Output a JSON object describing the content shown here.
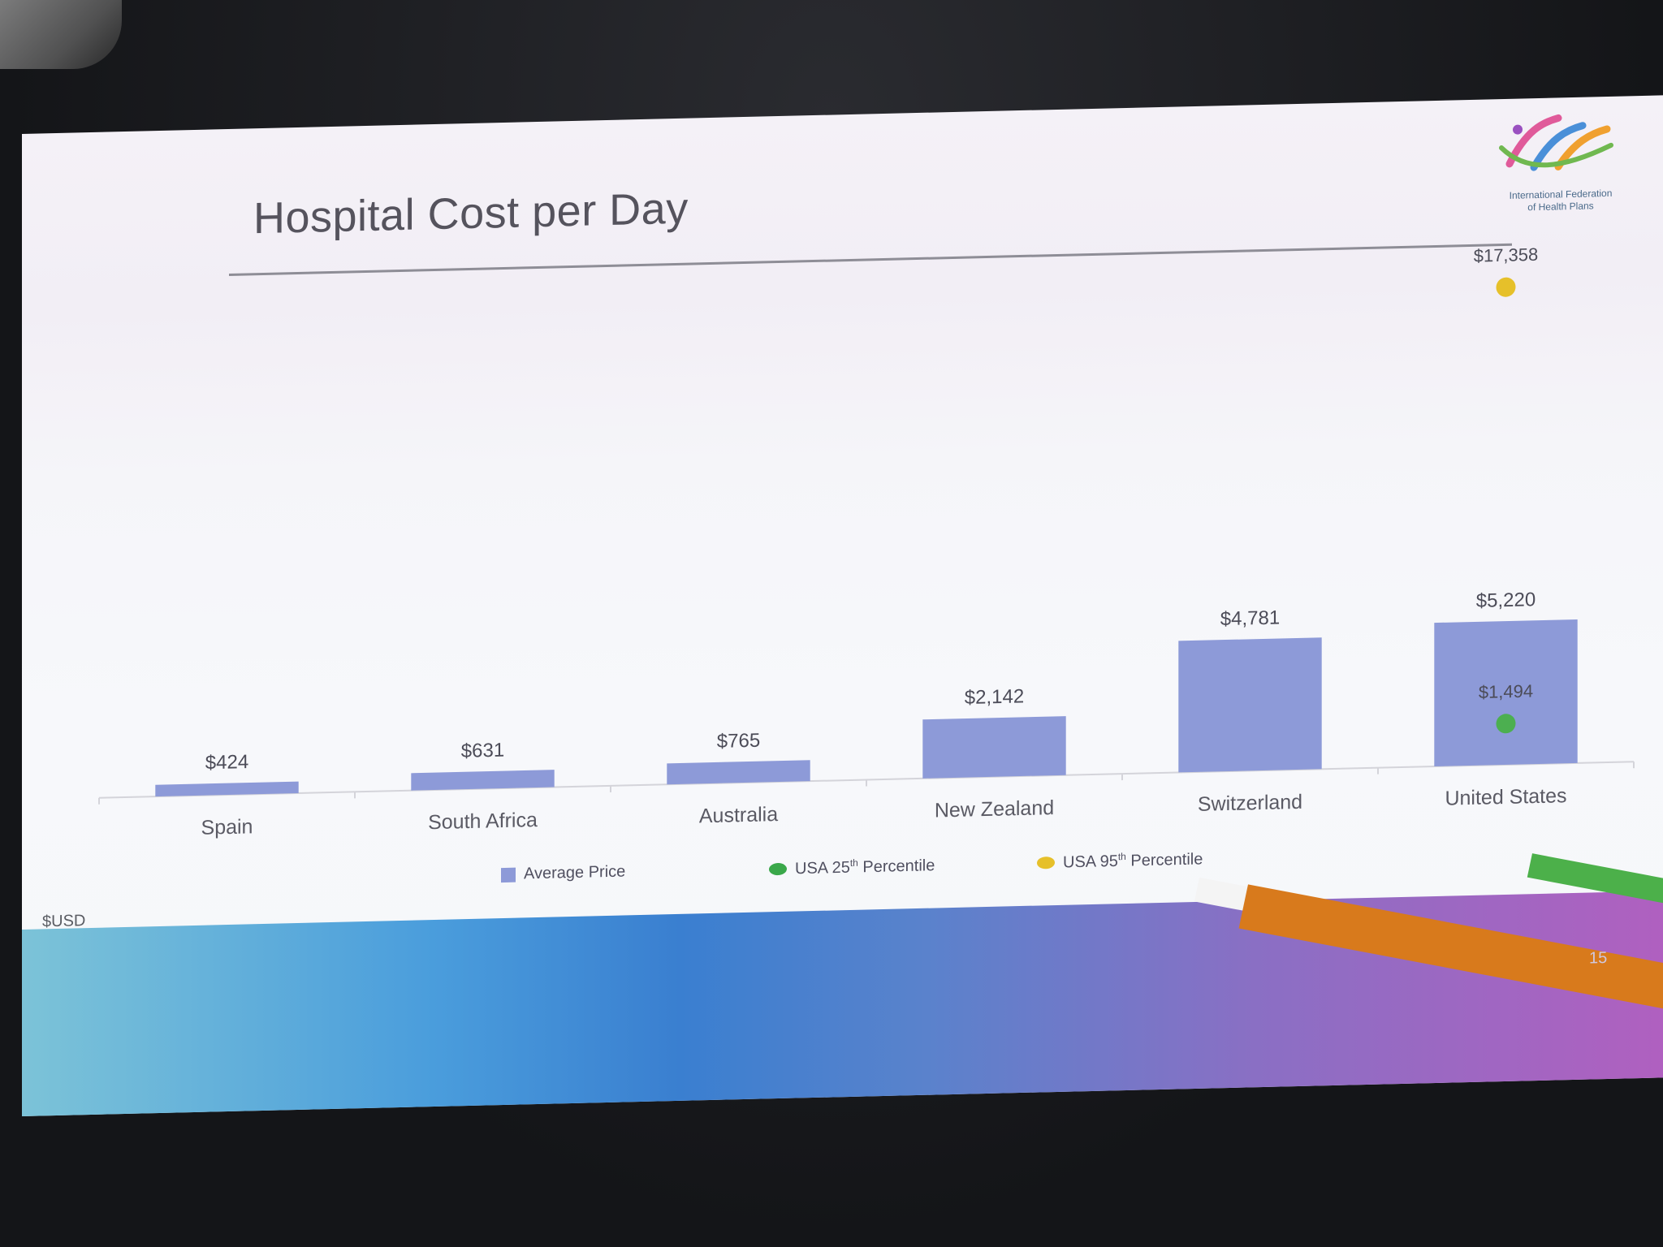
{
  "slide": {
    "title": "Hospital Cost per Day",
    "logo_text_line1": "International Federation",
    "logo_text_line2": "of Health Plans",
    "unit_label": "$USD",
    "page_number": "15"
  },
  "legend": [
    {
      "label": "Average Price",
      "color": "#8d9ad8",
      "shape": "square"
    },
    {
      "label": "USA 25",
      "sup": "th",
      "suffix": " Percentile",
      "color": "#4caf50",
      "shape": "dot"
    },
    {
      "label": "USA 95",
      "sup": "th",
      "suffix": " Percentile",
      "color": "#e6c02a",
      "shape": "dot"
    }
  ],
  "chart_data": {
    "type": "bar",
    "title": "Hospital Cost per Day",
    "ylabel": "$USD",
    "categories": [
      "Spain",
      "South Africa",
      "Australia",
      "New Zealand",
      "Switzerland",
      "United States"
    ],
    "series": [
      {
        "name": "Average Price",
        "type": "bar",
        "color": "#8d9ad8",
        "values": [
          424,
          631,
          765,
          2142,
          4781,
          5220
        ],
        "labels": [
          "$424",
          "$631",
          "$765",
          "$2,142",
          "$4,781",
          "$5,220"
        ]
      },
      {
        "name": "USA 25th Percentile",
        "type": "point",
        "color": "#4caf50",
        "values": [
          null,
          null,
          null,
          null,
          null,
          1494
        ],
        "labels": [
          null,
          null,
          null,
          null,
          null,
          "$1,494"
        ]
      },
      {
        "name": "USA 95th Percentile",
        "type": "point",
        "color": "#e6c02a",
        "values": [
          null,
          null,
          null,
          null,
          null,
          17358
        ],
        "labels": [
          null,
          null,
          null,
          null,
          null,
          "$17,358"
        ]
      }
    ],
    "ylim": [
      0,
      18000
    ],
    "grid": false,
    "legend_position": "bottom"
  }
}
